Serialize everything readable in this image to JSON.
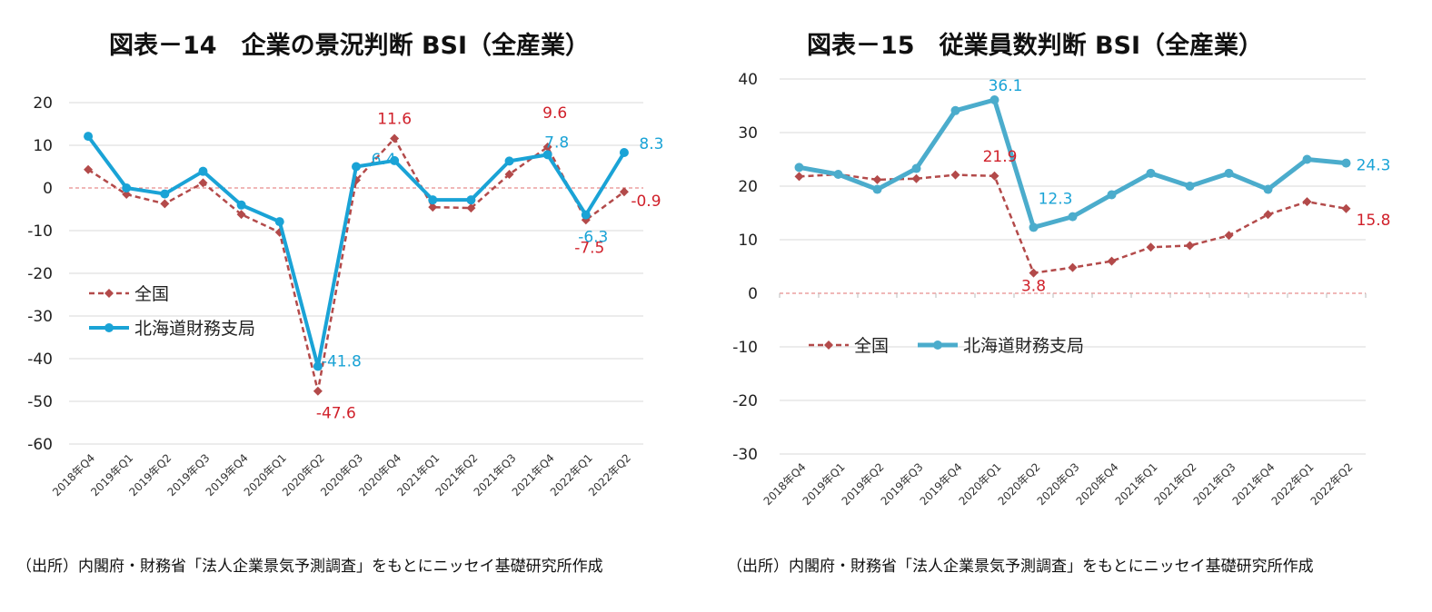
{
  "source_left": "（出所）内閣府・財務省「法人企業景気予測調査」をもとにニッセイ基礎研究所作成",
  "source_right": "（出所）内閣府・財務省「法人企業景気予測調査」をもとにニッセイ基礎研究所作成",
  "colors": {
    "national": "#b34a4a",
    "hokkaido_left": "#1aa3d6",
    "hokkaido_right": "#4baccc",
    "label_red": "#d0202a",
    "label_blue": "#1aa3d6",
    "grid": "#d9d9d9"
  },
  "chart_data": [
    {
      "type": "line",
      "title": "図表－14　企業の景況判断 BSI（全産業）",
      "categories": [
        "2018年Q4",
        "2019年Q1",
        "2019年Q2",
        "2019年Q3",
        "2019年Q4",
        "2020年Q1",
        "2020年Q2",
        "2020年Q3",
        "2020年Q4",
        "2021年Q1",
        "2021年Q2",
        "2021年Q3",
        "2021年Q4",
        "2022年Q1",
        "2022年Q2"
      ],
      "ylim": [
        -60,
        20
      ],
      "yticks": [
        "20",
        "10",
        "0",
        "-10",
        "-20",
        "-30",
        "-40",
        "-50",
        "-60"
      ],
      "grid": true,
      "legend_position": "left",
      "series": [
        {
          "name": "全国",
          "values": [
            4.3,
            -1.5,
            -3.7,
            1.2,
            -6.2,
            -10.4,
            -47.6,
            1.8,
            11.6,
            -4.5,
            -4.7,
            3.2,
            9.6,
            -7.5,
            -0.9
          ]
        },
        {
          "name": "北海道財務支局",
          "values": [
            12.1,
            0.0,
            -1.4,
            3.9,
            -4.0,
            -7.9,
            -41.8,
            5.0,
            6.4,
            -2.8,
            -2.8,
            6.3,
            7.8,
            -6.3,
            8.3
          ]
        }
      ],
      "annotations": [
        {
          "text": "11.6",
          "series": 0,
          "index": 8
        },
        {
          "text": "9.6",
          "series": 0,
          "index": 12
        },
        {
          "text": "-47.6",
          "series": 0,
          "index": 6
        },
        {
          "text": "-7.5",
          "series": 0,
          "index": 13
        },
        {
          "text": "-0.9",
          "series": 0,
          "index": 14
        },
        {
          "text": "-41.8",
          "series": 1,
          "index": 6
        },
        {
          "text": "6.4",
          "series": 1,
          "index": 8
        },
        {
          "text": "7.8",
          "series": 1,
          "index": 12
        },
        {
          "text": "-6.3",
          "series": 1,
          "index": 13
        },
        {
          "text": "8.3",
          "series": 1,
          "index": 14
        }
      ]
    },
    {
      "type": "line",
      "title": "図表－15　従業員数判断 BSI（全産業）",
      "categories": [
        "2018年Q4",
        "2019年Q1",
        "2019年Q2",
        "2019年Q3",
        "2019年Q4",
        "2020年Q1",
        "2020年Q2",
        "2020年Q3",
        "2020年Q4",
        "2021年Q1",
        "2021年Q2",
        "2021年Q3",
        "2021年Q4",
        "2022年Q1",
        "2022年Q2"
      ],
      "ylim": [
        -30,
        40
      ],
      "yticks": [
        "40",
        "30",
        "20",
        "10",
        "0",
        "-10",
        "-20",
        "-30"
      ],
      "grid": true,
      "legend_position": "middle",
      "series": [
        {
          "name": "全国",
          "values": [
            21.8,
            22.2,
            21.2,
            21.4,
            22.1,
            21.9,
            3.8,
            4.8,
            6.0,
            8.6,
            8.9,
            10.8,
            14.7,
            17.1,
            15.8
          ]
        },
        {
          "name": "北海道財務支局",
          "values": [
            23.5,
            22.2,
            19.4,
            23.3,
            34.1,
            36.1,
            12.3,
            14.3,
            18.4,
            22.4,
            20.0,
            22.4,
            19.4,
            25.0,
            24.3
          ]
        }
      ],
      "annotations": [
        {
          "text": "21.9",
          "series": 0,
          "index": 5
        },
        {
          "text": "3.8",
          "series": 0,
          "index": 6
        },
        {
          "text": "15.8",
          "series": 0,
          "index": 14
        },
        {
          "text": "36.1",
          "series": 1,
          "index": 5
        },
        {
          "text": "12.3",
          "series": 1,
          "index": 6
        },
        {
          "text": "24.3",
          "series": 1,
          "index": 14
        }
      ]
    }
  ]
}
